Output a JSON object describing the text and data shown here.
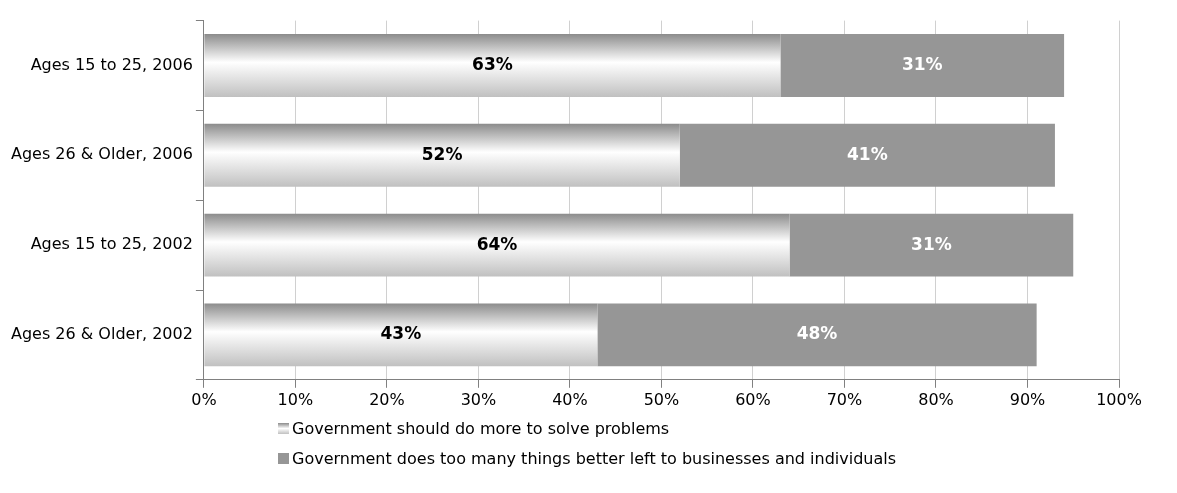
{
  "chart_data": {
    "type": "bar",
    "orientation": "horizontal",
    "stacked": true,
    "categories": [
      "Ages 15 to 25, 2006",
      "Ages 26 & Older, 2006",
      "Ages 15 to 25, 2002",
      "Ages 26 & Older, 2002"
    ],
    "series": [
      {
        "name": "Government should do more to solve problems",
        "color": "#c0c0c0",
        "values": [
          63,
          52,
          64,
          43
        ],
        "value_labels": [
          "63%",
          "52%",
          "64%",
          "43%"
        ]
      },
      {
        "name": "Government does too many things better left to businesses and individuals",
        "color": "#969696",
        "values": [
          31,
          41,
          31,
          48
        ],
        "value_labels": [
          "31%",
          "41%",
          "31%",
          "48%"
        ]
      }
    ],
    "xlim": [
      0,
      100
    ],
    "xticks": [
      {
        "value": 0,
        "label": "0%"
      },
      {
        "value": 10,
        "label": "10%"
      },
      {
        "value": 20,
        "label": "20%"
      },
      {
        "value": 30,
        "label": "30%"
      },
      {
        "value": 40,
        "label": "40%"
      },
      {
        "value": 50,
        "label": "50%"
      },
      {
        "value": 60,
        "label": "60%"
      },
      {
        "value": 70,
        "label": "70%"
      },
      {
        "value": 80,
        "label": "80%"
      },
      {
        "value": 90,
        "label": "90%"
      },
      {
        "value": 100,
        "label": "100%"
      }
    ],
    "grid": "x",
    "legend": "bottom"
  }
}
